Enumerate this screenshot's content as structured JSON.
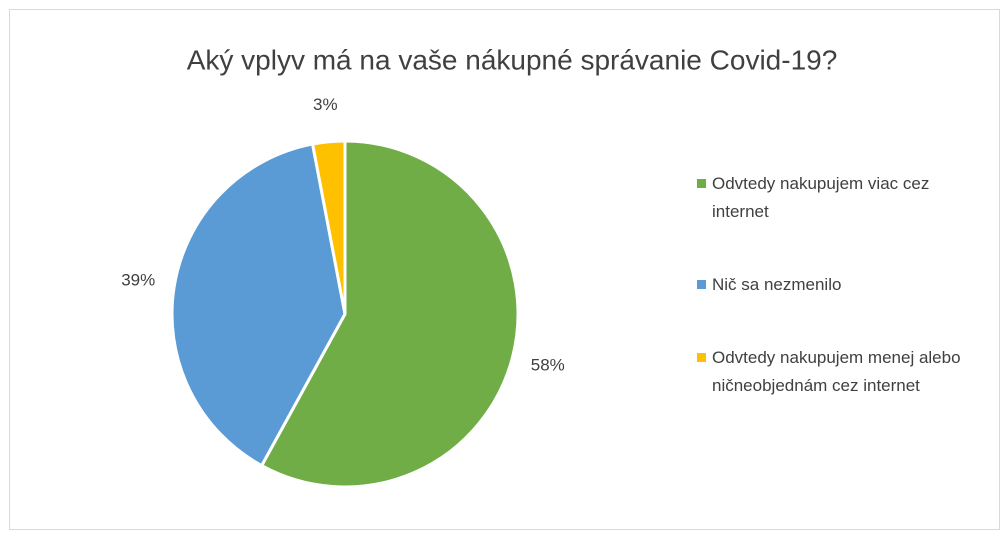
{
  "chart_data": {
    "type": "pie",
    "title": "Aký vplyv má na vaše nákupné správanie Covid-19?",
    "categories": [
      "Odvtedy nakupujem viac cez internet",
      "Nič sa nezmenilo",
      "Odvtedy nakupujem menej alebo ničneobjednám cez internet"
    ],
    "values": [
      58,
      39,
      3
    ],
    "value_labels": [
      "58%",
      "39%",
      "3%"
    ],
    "colors": [
      "#70ad47",
      "#5b9bd5",
      "#ffc000"
    ],
    "legend": "right"
  }
}
